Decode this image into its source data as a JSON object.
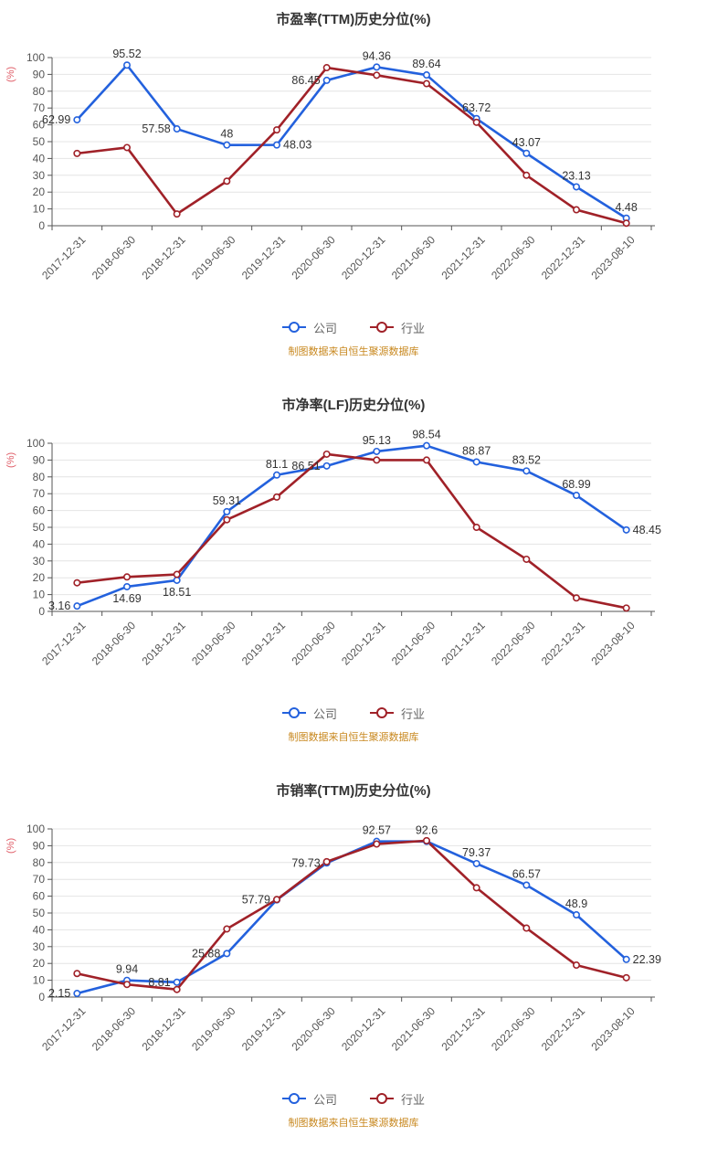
{
  "legend": {
    "company": "公司",
    "industry": "行业"
  },
  "footer_note": "制图数据来自恒生聚源数据库",
  "colors": {
    "company": "#2361dd",
    "industry": "#a02128",
    "ylabel": "#e0606a",
    "footer": "#c8881f",
    "axis": "#555555",
    "grid": "#e4e4e4",
    "data_label": "#333333"
  },
  "chart_data": [
    {
      "type": "line",
      "title": "市盈率(TTM)历史分位(%)",
      "ylabel": "(%)",
      "ylim": [
        0,
        100
      ],
      "ytick_step": 10,
      "grid": true,
      "legend_position": "bottom",
      "categories": [
        "2017-12-31",
        "2018-06-30",
        "2018-12-31",
        "2019-06-30",
        "2019-12-31",
        "2020-06-30",
        "2020-12-31",
        "2021-06-30",
        "2021-12-31",
        "2022-06-30",
        "2022-12-31",
        "2023-08-10"
      ],
      "series": [
        {
          "name": "公司",
          "key": "company",
          "values": [
            62.99,
            95.52,
            57.58,
            48,
            48.03,
            86.45,
            94.36,
            89.64,
            63.72,
            43.07,
            23.13,
            4.48
          ],
          "labels": [
            "62.99",
            "95.52",
            "57.58",
            "48",
            "48.03",
            "86.45",
            "94.36",
            "89.64",
            "63.72",
            "43.07",
            "23.13",
            "4.48"
          ],
          "label_pos": [
            "left",
            "above",
            "left",
            "above",
            "right",
            "left",
            "above",
            "above",
            "above",
            "above",
            "above",
            "above"
          ]
        },
        {
          "name": "行业",
          "key": "industry",
          "values": [
            43,
            46.5,
            7,
            26.5,
            57,
            94,
            89.5,
            84.5,
            61.5,
            30,
            9.5,
            1.5
          ]
        }
      ]
    },
    {
      "type": "line",
      "title": "市净率(LF)历史分位(%)",
      "ylabel": "(%)",
      "ylim": [
        0,
        100
      ],
      "ytick_step": 10,
      "grid": true,
      "legend_position": "bottom",
      "categories": [
        "2017-12-31",
        "2018-06-30",
        "2018-12-31",
        "2019-06-30",
        "2019-12-31",
        "2020-06-30",
        "2020-12-31",
        "2021-06-30",
        "2021-12-31",
        "2022-06-30",
        "2022-12-31",
        "2023-08-10"
      ],
      "series": [
        {
          "name": "公司",
          "key": "company",
          "values": [
            3.16,
            14.69,
            18.51,
            59.31,
            81.1,
            86.51,
            95.13,
            98.54,
            88.87,
            83.52,
            68.99,
            48.45
          ],
          "labels": [
            "3.16",
            "14.69",
            "18.51",
            "59.31",
            "81.1",
            "86.51",
            "95.13",
            "98.54",
            "88.87",
            "83.52",
            "68.99",
            "48.45"
          ],
          "label_pos": [
            "left",
            "below",
            "below",
            "above",
            "above",
            "left",
            "above",
            "above",
            "above",
            "above",
            "above",
            "right"
          ]
        },
        {
          "name": "行业",
          "key": "industry",
          "values": [
            17,
            20.5,
            22,
            54.5,
            68,
            93.5,
            90,
            90,
            50,
            31,
            8,
            2
          ]
        }
      ]
    },
    {
      "type": "line",
      "title": "市销率(TTM)历史分位(%)",
      "ylabel": "(%)",
      "ylim": [
        0,
        100
      ],
      "ytick_step": 10,
      "grid": true,
      "legend_position": "bottom",
      "categories": [
        "2017-12-31",
        "2018-06-30",
        "2018-12-31",
        "2019-06-30",
        "2019-12-31",
        "2020-06-30",
        "2020-12-31",
        "2021-06-30",
        "2021-12-31",
        "2022-06-30",
        "2022-12-31",
        "2023-08-10"
      ],
      "series": [
        {
          "name": "公司",
          "key": "company",
          "values": [
            2.15,
            9.94,
            8.81,
            25.88,
            57.79,
            79.73,
            92.57,
            92.6,
            79.37,
            66.57,
            48.9,
            22.39
          ],
          "labels": [
            "2.15",
            "9.94",
            "8.81",
            "25.88",
            "57.79",
            "79.73",
            "92.57",
            "92.6",
            "79.37",
            "66.57",
            "48.9",
            "22.39"
          ],
          "label_pos": [
            "left",
            "above",
            "left",
            "left",
            "left",
            "left",
            "above",
            "above",
            "above",
            "above",
            "above",
            "right"
          ]
        },
        {
          "name": "行业",
          "key": "industry",
          "values": [
            14,
            7.5,
            4.5,
            40.5,
            58,
            80.5,
            91,
            93,
            65,
            41,
            19,
            11.5
          ]
        }
      ]
    }
  ]
}
